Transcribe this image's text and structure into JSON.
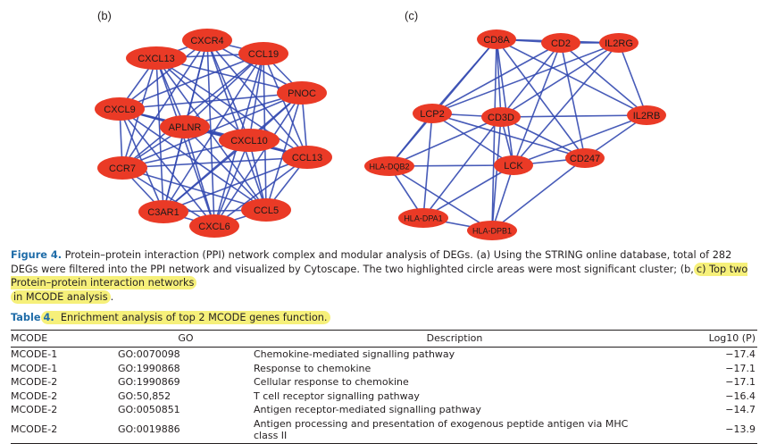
{
  "panels": {
    "b": {
      "label": "(b)",
      "nodes": [
        {
          "id": "CXCR4",
          "label": "CXCR4"
        },
        {
          "id": "CXCL13",
          "label": "CXCL13"
        },
        {
          "id": "CCL19",
          "label": "CCL19"
        },
        {
          "id": "PNOC",
          "label": "PNOC"
        },
        {
          "id": "CXCL9",
          "label": "CXCL9"
        },
        {
          "id": "APLNR",
          "label": "APLNR"
        },
        {
          "id": "CXCL10",
          "label": "CXCL10"
        },
        {
          "id": "CCL13",
          "label": "CCL13"
        },
        {
          "id": "CCR7",
          "label": "CCR7"
        },
        {
          "id": "C3AR1",
          "label": "C3AR1"
        },
        {
          "id": "CCL5",
          "label": "CCL5"
        },
        {
          "id": "CXCL6",
          "label": "CXCL6"
        }
      ],
      "edges": "complete"
    },
    "c": {
      "label": "(c)",
      "nodes": [
        {
          "id": "CD8A",
          "label": "CD8A"
        },
        {
          "id": "CD2",
          "label": "CD2"
        },
        {
          "id": "IL2RG",
          "label": "IL2RG"
        },
        {
          "id": "LCP2",
          "label": "LCP2"
        },
        {
          "id": "CD3D",
          "label": "CD3D"
        },
        {
          "id": "IL2RB",
          "label": "IL2RB"
        },
        {
          "id": "HLA-DQB2",
          "label": "HLA-DQB2"
        },
        {
          "id": "LCK",
          "label": "LCK"
        },
        {
          "id": "CD247",
          "label": "CD247"
        },
        {
          "id": "HLA-DPA1",
          "label": "HLA-DPA1"
        },
        {
          "id": "HLA-DPB1",
          "label": "HLA-DPB1"
        }
      ],
      "edges": [
        [
          "CD8A",
          "CD2"
        ],
        [
          "CD8A",
          "IL2RG"
        ],
        [
          "CD8A",
          "LCP2"
        ],
        [
          "CD8A",
          "CD3D"
        ],
        [
          "CD8A",
          "IL2RB"
        ],
        [
          "CD8A",
          "LCK"
        ],
        [
          "CD8A",
          "CD247"
        ],
        [
          "CD8A",
          "HLA-DQB2"
        ],
        [
          "CD8A",
          "HLA-DPB1"
        ],
        [
          "CD2",
          "IL2RG"
        ],
        [
          "CD2",
          "CD3D"
        ],
        [
          "CD2",
          "LCP2"
        ],
        [
          "CD2",
          "LCK"
        ],
        [
          "CD2",
          "CD247"
        ],
        [
          "CD2",
          "IL2RB"
        ],
        [
          "IL2RG",
          "IL2RB"
        ],
        [
          "IL2RG",
          "CD3D"
        ],
        [
          "IL2RG",
          "LCK"
        ],
        [
          "IL2RG",
          "LCP2"
        ],
        [
          "LCP2",
          "CD3D"
        ],
        [
          "LCP2",
          "LCK"
        ],
        [
          "LCP2",
          "HLA-DQB2"
        ],
        [
          "LCP2",
          "CD247"
        ],
        [
          "LCP2",
          "HLA-DPA1"
        ],
        [
          "CD3D",
          "IL2RB"
        ],
        [
          "CD3D",
          "LCK"
        ],
        [
          "CD3D",
          "CD247"
        ],
        [
          "CD3D",
          "HLA-DQB2"
        ],
        [
          "CD3D",
          "HLA-DPB1"
        ],
        [
          "CD3D",
          "HLA-DPA1"
        ],
        [
          "IL2RB",
          "LCK"
        ],
        [
          "IL2RB",
          "CD247"
        ],
        [
          "HLA-DQB2",
          "LCK"
        ],
        [
          "HLA-DQB2",
          "HLA-DPA1"
        ],
        [
          "HLA-DQB2",
          "HLA-DPB1"
        ],
        [
          "LCK",
          "CD247"
        ],
        [
          "LCK",
          "HLA-DPA1"
        ],
        [
          "LCK",
          "HLA-DPB1"
        ],
        [
          "CD247",
          "HLA-DPB1"
        ],
        [
          "HLA-DPA1",
          "HLA-DPB1"
        ]
      ]
    }
  },
  "colors": {
    "node": "#ea3a26",
    "edge": "#3349b0"
  },
  "figure_caption": {
    "label": "Figure 4.",
    "text_main": "Protein–protein interaction (PPI) network complex and modular analysis of DEGs. (a) Using the STRING online database, total of 282 DEGs were filtered into the PPI network and visualized by Cytoscape. The two highlighted circle areas were most significant cluster; (b,",
    "text_highlight_1": "c) Top two Protein–protein interaction networks",
    "text_highlight_2": "in MCODE analysis",
    "text_end": "."
  },
  "table": {
    "label": "Table",
    "number": "4.",
    "title": "Enrichment analysis of top 2 MCODE genes function.",
    "headers": [
      "MCODE",
      "GO",
      "Description",
      "Log10 (P)"
    ],
    "rows": [
      [
        "MCODE-1",
        "GO:0070098",
        "Chemokine-mediated signalling pathway",
        "−17.4"
      ],
      [
        "MCODE-1",
        "GO:1990868",
        "Response to chemokine",
        "−17.1"
      ],
      [
        "MCODE-2",
        "GO:1990869",
        "Cellular response to chemokine",
        "−17.1"
      ],
      [
        "MCODE-2",
        "GO:50,852",
        "T cell receptor signalling pathway",
        "−16.4"
      ],
      [
        "MCODE-2",
        "GO:0050851",
        "Antigen receptor-mediated signalling pathway",
        "−14.7"
      ],
      [
        "MCODE-2",
        "GO:0019886",
        "Antigen processing and presentation of exogenous peptide antigen via MHC class II",
        "−13.9"
      ]
    ]
  }
}
